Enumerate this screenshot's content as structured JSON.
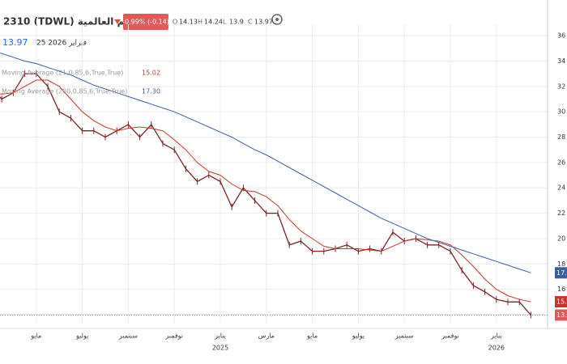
{
  "chart_data": {
    "type": "line",
    "title": "2310 (TDWL) سيكيم العالمية",
    "change_label": "-0.99% (-0.14)",
    "ohlc": [
      {
        "label": "O",
        "value": 14.13
      },
      {
        "label": "H",
        "value": 14.24
      },
      {
        "label": "L",
        "value": 13.9
      },
      {
        "label": "C",
        "value": 13.97
      }
    ],
    "last_price_label": "13.97",
    "date_label": "25 2026 فبراير",
    "categories": [
      null,
      null,
      null,
      null,
      "مايو",
      null,
      null,
      null,
      "يوليو",
      null,
      null,
      null,
      "سبتمبر",
      null,
      null,
      null,
      "نوفمبر",
      null,
      null,
      null,
      "يناير",
      null,
      null,
      null,
      "مارس",
      null,
      null,
      null,
      "مايو",
      null,
      null,
      null,
      "يوليو",
      null,
      null,
      null,
      "سبتمبر",
      null,
      null,
      null,
      "نوفمبر",
      null,
      null,
      null,
      "يناير",
      null,
      null,
      null
    ],
    "category_years": [
      null,
      null,
      null,
      null,
      null,
      null,
      null,
      null,
      null,
      null,
      null,
      null,
      null,
      null,
      null,
      null,
      null,
      null,
      null,
      null,
      "2025",
      null,
      null,
      null,
      null,
      null,
      null,
      null,
      null,
      null,
      null,
      null,
      null,
      null,
      null,
      null,
      null,
      null,
      null,
      null,
      null,
      null,
      null,
      null,
      "2026",
      null,
      null,
      null
    ],
    "series": [
      {
        "name": "C",
        "color": "#7a2424",
        "last_value_label": "13.97",
        "values": [
          32,
          31,
          31.5,
          33,
          33,
          32,
          30,
          29.5,
          28.5,
          28.5,
          28,
          28.5,
          29,
          28,
          29,
          27.5,
          27,
          25.5,
          24.5,
          25,
          24.5,
          22.5,
          24,
          23,
          22,
          22,
          19.5,
          19.8,
          19,
          19,
          19.2,
          19.5,
          19,
          19.2,
          19,
          20.5,
          19.8,
          20,
          19.5,
          19.5,
          19,
          17.5,
          16.3,
          15.8,
          15.2,
          15,
          15,
          13.97
        ]
      },
      {
        "name": "Moving Average (21,0,85,6,True,True)",
        "color": "#c0392b",
        "last_value_label": "15.02",
        "values": [
          31.5,
          31.4,
          31.5,
          32,
          32.5,
          32.5,
          32,
          31,
          30,
          29.3,
          28.8,
          28.5,
          28.7,
          28.8,
          28.7,
          28.5,
          27.8,
          27,
          26,
          25.3,
          25,
          24.3,
          23.8,
          23.7,
          23.3,
          22.6,
          21.5,
          20.6,
          20,
          19.4,
          19.2,
          19.2,
          19.2,
          19.1,
          19,
          19.4,
          19.8,
          20,
          19.9,
          19.8,
          19.5,
          18.7,
          17.8,
          16.8,
          16,
          15.5,
          15.2,
          15.02
        ]
      },
      {
        "name": "Moving Average (200,0,85,6,True,True)",
        "color": "#3a5f9e",
        "last_value_label": "17.30",
        "values": [
          34.8,
          34.6,
          34.3,
          34,
          33.8,
          33.5,
          33.2,
          32.9,
          32.5,
          32.1,
          31.8,
          31.5,
          31.2,
          30.9,
          30.6,
          30.3,
          30,
          29.6,
          29.2,
          28.8,
          28.4,
          28,
          27.5,
          27,
          26.6,
          26.1,
          25.6,
          25.1,
          24.6,
          24.1,
          23.6,
          23.1,
          22.6,
          22.1,
          21.6,
          21.2,
          20.8,
          20.4,
          20,
          19.7,
          19.4,
          19.1,
          18.8,
          18.5,
          18.2,
          17.9,
          17.6,
          17.3
        ]
      }
    ],
    "ylim": [
      13.3,
      36.9
    ],
    "yticks": [
      14,
      16,
      18,
      20,
      22,
      24,
      26,
      28,
      30,
      32,
      34,
      36
    ],
    "grid": true
  }
}
